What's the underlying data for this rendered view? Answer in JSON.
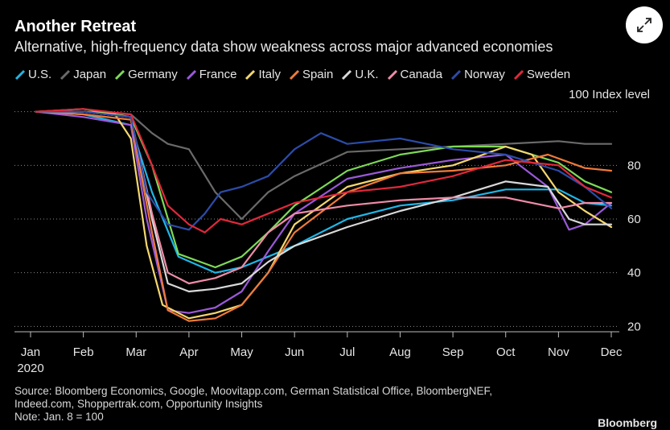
{
  "header": {
    "title": "Another Retreat",
    "subtitle": "Alternative, high-frequency data show weakness across major advanced economies"
  },
  "unit_label": "100 Index level",
  "footer": {
    "source": "Source: Bloomberg Economics, Google, Moovitapp.com, German Statistical Office, BloombergNEF,",
    "source2": "Indeed.com, Shoppertrak.com, Opportunity Insights",
    "note": "Note: Jan. 8 = 100",
    "brand": "Bloomberg"
  },
  "icons": {
    "expand": "expand-arrows-icon"
  },
  "chart_data": {
    "type": "line",
    "title": "Another Retreat",
    "subtitle": "Alternative, high-frequency data show weakness across major advanced economies",
    "year_label": "2020",
    "x_months": [
      "Jan",
      "Feb",
      "Mar",
      "Apr",
      "May",
      "Jun",
      "Jul",
      "Aug",
      "Sep",
      "Oct",
      "Nov",
      "Dec"
    ],
    "y_ticks": [
      20,
      40,
      60,
      80
    ],
    "ylim": [
      18,
      108
    ],
    "grid": true,
    "legend_position": "top",
    "series": [
      {
        "name": "U.S.",
        "color": "#1fb6e6",
        "x": [
          0.1,
          1.0,
          1.9,
          2.3,
          2.8,
          3.5,
          4.0,
          4.5,
          5.0,
          6.0,
          7.0,
          8.0,
          9.0,
          10.0,
          10.5,
          11.0
        ],
        "y": [
          100,
          99,
          95,
          70,
          46,
          40,
          42,
          46,
          50,
          60,
          65,
          67,
          71,
          71,
          66,
          65
        ]
      },
      {
        "name": "Japan",
        "color": "#6a6a6a",
        "x": [
          0.1,
          1.0,
          1.9,
          2.3,
          2.6,
          3.0,
          3.5,
          4.0,
          4.5,
          5.0,
          6.0,
          7.0,
          8.0,
          9.0,
          10.0,
          10.5,
          11.0
        ],
        "y": [
          100,
          100,
          99,
          92,
          88,
          86,
          70,
          60,
          70,
          76,
          85,
          86,
          87,
          88,
          89,
          88,
          88
        ]
      },
      {
        "name": "Germany",
        "color": "#7ed957",
        "x": [
          0.1,
          1.0,
          1.9,
          2.3,
          2.8,
          3.5,
          4.0,
          4.5,
          5.0,
          6.0,
          7.0,
          8.0,
          9.0,
          10.0,
          10.5,
          11.0
        ],
        "y": [
          100,
          101,
          98,
          80,
          47,
          42,
          46,
          55,
          65,
          78,
          84,
          87,
          87,
          81,
          74,
          70
        ]
      },
      {
        "name": "France",
        "color": "#9b59d8",
        "x": [
          0.1,
          1.0,
          1.9,
          2.2,
          2.6,
          3.0,
          3.5,
          4.0,
          4.5,
          5.0,
          6.0,
          7.0,
          8.0,
          9.0,
          9.8,
          10.2,
          10.5,
          11.0
        ],
        "y": [
          100,
          98,
          95,
          60,
          26,
          25,
          27,
          33,
          48,
          62,
          75,
          79,
          82,
          84,
          72,
          56,
          58,
          66
        ]
      },
      {
        "name": "Italy",
        "color": "#f5d76e",
        "x": [
          0.1,
          1.0,
          1.6,
          1.9,
          2.2,
          2.5,
          3.0,
          3.5,
          4.0,
          4.5,
          5.0,
          6.0,
          7.0,
          8.0,
          9.0,
          9.5,
          10.0,
          10.5,
          11.0
        ],
        "y": [
          100,
          100,
          99,
          90,
          50,
          28,
          23,
          25,
          28,
          40,
          58,
          72,
          77,
          80,
          87,
          84,
          70,
          63,
          57
        ]
      },
      {
        "name": "Spain",
        "color": "#f07a3a",
        "x": [
          0.1,
          1.0,
          1.9,
          2.3,
          2.6,
          3.0,
          3.5,
          4.0,
          4.5,
          5.0,
          6.0,
          7.0,
          8.0,
          9.0,
          9.8,
          10.5,
          11.0
        ],
        "y": [
          100,
          99,
          97,
          55,
          26,
          22,
          23,
          28,
          40,
          55,
          70,
          77,
          78,
          80,
          84,
          79,
          78
        ]
      },
      {
        "name": "U.K.",
        "color": "#d9d9d9",
        "x": [
          0.1,
          1.0,
          1.9,
          2.3,
          2.6,
          3.0,
          3.5,
          4.0,
          4.5,
          5.0,
          6.0,
          7.0,
          8.0,
          9.0,
          9.8,
          10.2,
          10.5,
          11.0
        ],
        "y": [
          100,
          100,
          98,
          60,
          36,
          33,
          34,
          36,
          44,
          50,
          57,
          63,
          68,
          74,
          72,
          60,
          58,
          58
        ]
      },
      {
        "name": "Canada",
        "color": "#f08ca8",
        "x": [
          0.1,
          1.0,
          1.9,
          2.3,
          2.6,
          3.0,
          3.5,
          4.0,
          4.5,
          5.0,
          6.0,
          7.0,
          8.0,
          9.0,
          10.0,
          10.5,
          11.0
        ],
        "y": [
          100,
          100,
          98,
          62,
          40,
          36,
          38,
          42,
          55,
          62,
          65,
          67,
          68,
          68,
          64,
          66,
          66
        ]
      },
      {
        "name": "Norway",
        "color": "#2b4ca8",
        "x": [
          0.1,
          1.0,
          1.9,
          2.2,
          2.6,
          3.0,
          3.3,
          3.6,
          4.0,
          4.5,
          5.0,
          5.5,
          6.0,
          7.0,
          8.0,
          9.0,
          10.0,
          10.5,
          11.0
        ],
        "y": [
          100,
          100,
          98,
          70,
          58,
          56,
          62,
          70,
          72,
          76,
          86,
          92,
          88,
          90,
          86,
          84,
          78,
          72,
          64
        ]
      },
      {
        "name": "Sweden",
        "color": "#e0283c",
        "x": [
          0.1,
          1.0,
          1.9,
          2.2,
          2.6,
          3.0,
          3.3,
          3.6,
          4.0,
          4.5,
          5.0,
          6.0,
          7.0,
          8.0,
          9.0,
          10.0,
          10.5,
          11.0
        ],
        "y": [
          100,
          101,
          99,
          85,
          65,
          58,
          55,
          60,
          58,
          62,
          66,
          70,
          72,
          76,
          82,
          80,
          72,
          68
        ]
      }
    ]
  }
}
